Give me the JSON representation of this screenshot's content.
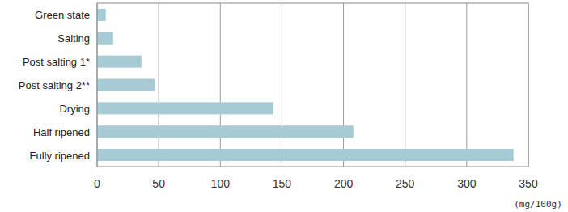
{
  "chart_data": {
    "type": "bar",
    "orientation": "horizontal",
    "categories": [
      "Green state",
      "Salting",
      "Post salting 1*",
      "Post salting 2**",
      "Drying",
      "Half ripened",
      "Fully ripened"
    ],
    "values": [
      7,
      13,
      36,
      47,
      143,
      208,
      338
    ],
    "color": "#a6cbd4",
    "xlabel": "(mg/100g)",
    "xlim": [
      0,
      350
    ],
    "xticks": [
      0,
      50,
      100,
      150,
      200,
      250,
      300,
      350
    ],
    "grid": true
  }
}
